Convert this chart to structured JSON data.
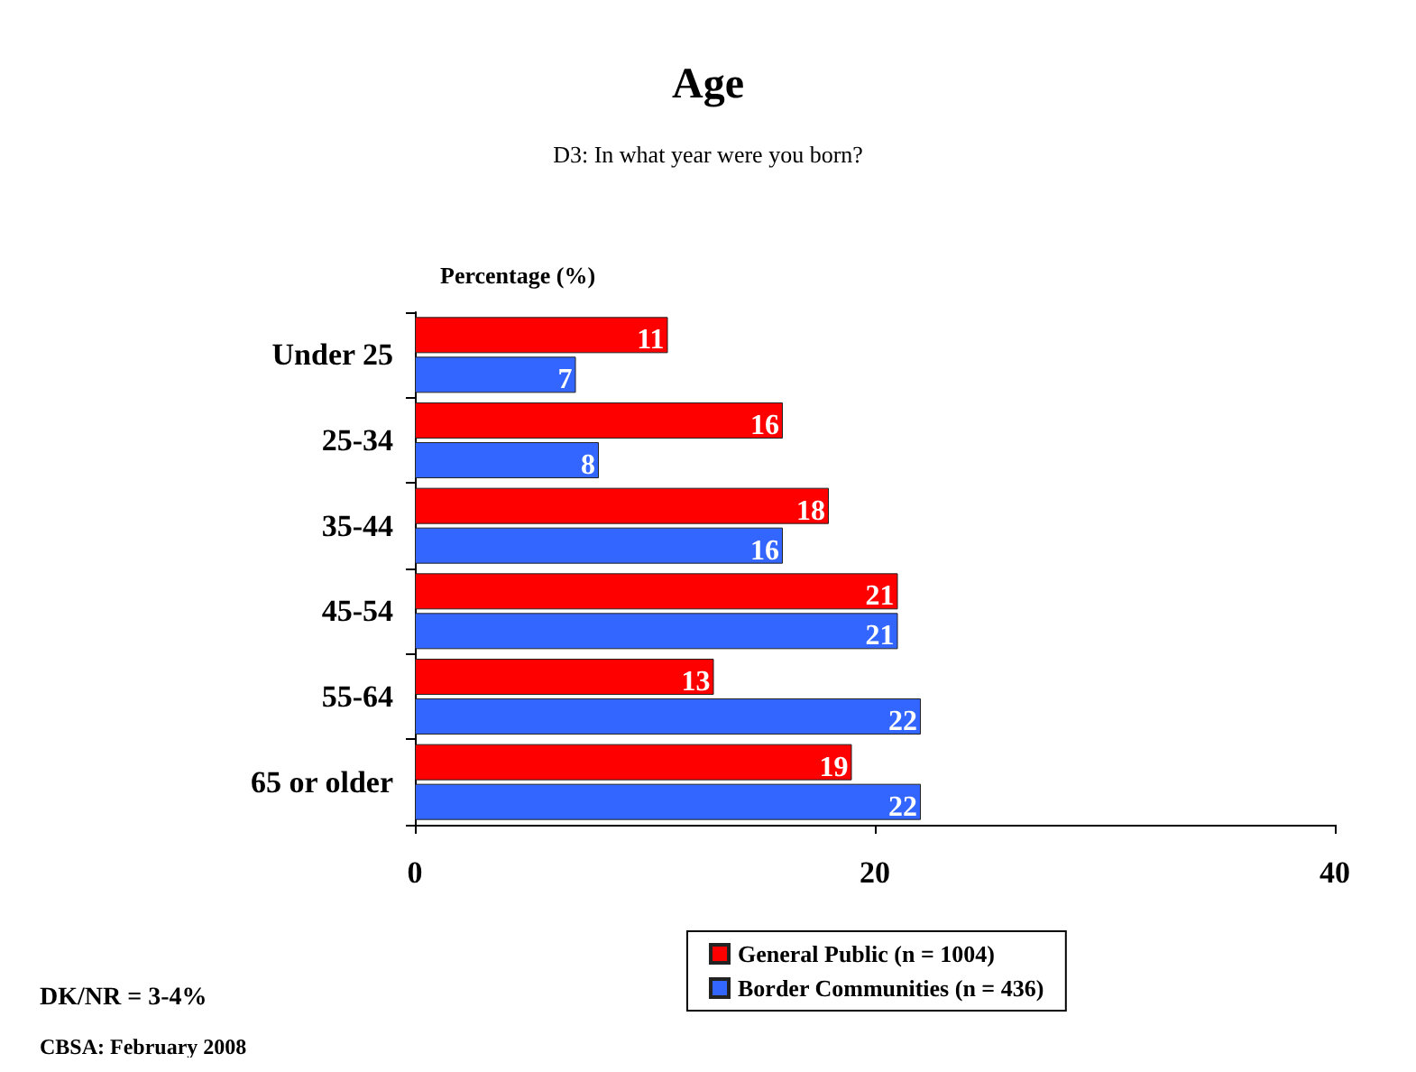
{
  "chart_data": {
    "type": "bar",
    "orientation": "horizontal",
    "title": "Age",
    "subtitle": "D3: In what year were you born?",
    "xlabel": "Percentage (%)",
    "categories": [
      "Under 25",
      "25-34",
      "35-44",
      "45-54",
      "55-64",
      "65 or older"
    ],
    "series": [
      {
        "name": "General Public (n = 1004)",
        "color": "#ff0000",
        "values": [
          11,
          16,
          18,
          21,
          13,
          19
        ]
      },
      {
        "name": "Border Communities (n = 436)",
        "color": "#3366ff",
        "values": [
          7,
          8,
          16,
          21,
          22,
          22
        ]
      }
    ],
    "xlim": [
      0,
      40
    ],
    "xticks": [
      0,
      20,
      40
    ],
    "data_labels": true,
    "grid": false,
    "legend": "bottom",
    "annotations": [
      "DK/NR = 3-4%",
      "CBSA: February 2008"
    ]
  }
}
